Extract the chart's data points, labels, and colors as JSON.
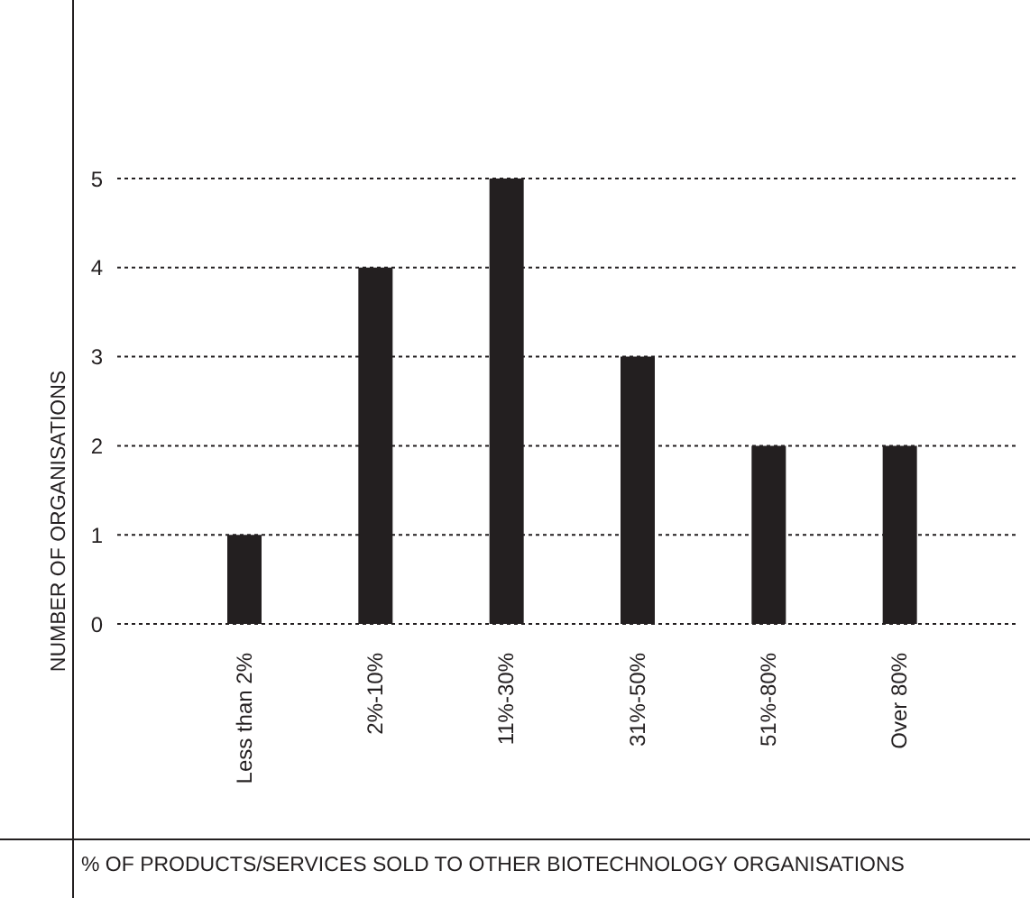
{
  "chart_data": {
    "type": "bar",
    "xlabel": "% OF PRODUCTS/SERVICES SOLD TO OTHER BIOTECHNOLOGY ORGANISATIONS",
    "ylabel": "NUMBER OF ORGANISATIONS",
    "categories": [
      "Less than 2%",
      "2%-10%",
      "11%-30%",
      "31%-50%",
      "51%-80%",
      "Over 80%"
    ],
    "values": [
      1,
      4,
      5,
      3,
      2,
      2
    ],
    "color": "#231f20",
    "ylim": [
      0,
      5
    ],
    "yticks": [
      0,
      1,
      2,
      3,
      4,
      5
    ],
    "grid": "y"
  }
}
